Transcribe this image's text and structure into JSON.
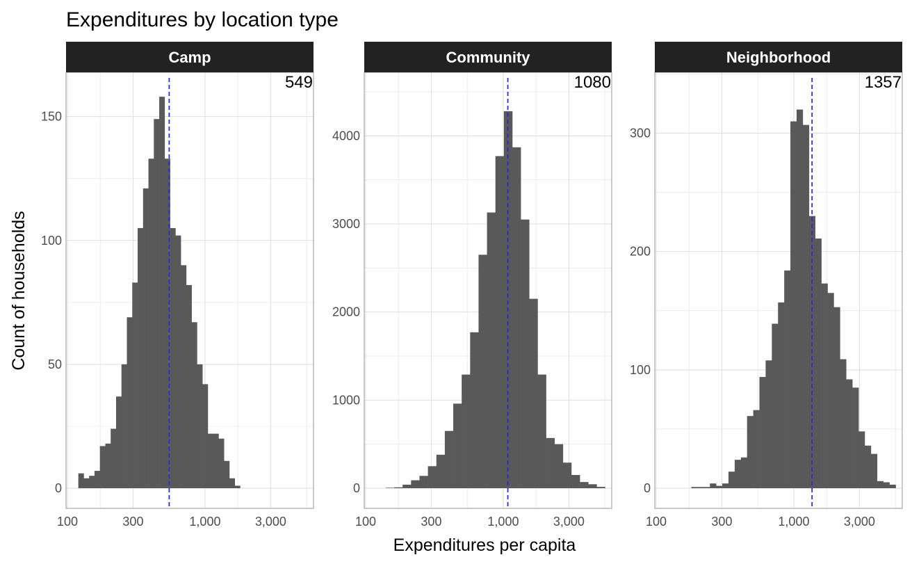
{
  "title": "Expenditures by location type",
  "xlabel": "Expenditures per capita",
  "ylabel": "Count of households",
  "colors": {
    "bar": "#595959",
    "median_line": "#2b2bd6",
    "strip": "#222222"
  },
  "chart_data": {
    "type": "histogram",
    "x_scale": "log10",
    "x_range": [
      100,
      6000
    ],
    "x_ticks": [
      100,
      300,
      1000,
      3000
    ],
    "x_tick_labels": [
      "100",
      "300",
      "1,000",
      "3,000"
    ],
    "grid": true,
    "panels": [
      {
        "name": "Camp",
        "median": 549,
        "median_label": "549",
        "ylim": [
          0,
          160
        ],
        "y_ticks": [
          0,
          50,
          100,
          150
        ],
        "y_tick_labels": [
          "0",
          "50",
          "100",
          "150"
        ],
        "bin_start": 120,
        "bin_end": 1800,
        "counts": [
          6,
          4,
          5,
          7,
          17,
          18,
          24,
          37,
          50,
          69,
          83,
          105,
          121,
          133,
          149,
          158,
          133,
          105,
          102,
          90,
          82,
          67,
          50,
          42,
          22,
          22,
          20,
          11,
          4,
          1
        ]
      },
      {
        "name": "Community",
        "median": 1080,
        "median_label": "1080",
        "ylim": [
          0,
          4500
        ],
        "y_ticks": [
          0,
          1000,
          2000,
          3000,
          4000
        ],
        "y_tick_labels": [
          "0",
          "1000",
          "2000",
          "3000",
          "4000"
        ],
        "bin_start": 140,
        "bin_end": 5500,
        "counts": [
          5,
          10,
          40,
          90,
          140,
          250,
          380,
          650,
          960,
          1290,
          1770,
          2650,
          3130,
          3770,
          4280,
          3870,
          3050,
          2150,
          1290,
          570,
          500,
          290,
          150,
          70,
          45,
          15
        ]
      },
      {
        "name": "Neighborhood",
        "median": 1357,
        "median_label": "1357",
        "ylim": [
          0,
          335
        ],
        "y_ticks": [
          0,
          100,
          200,
          300
        ],
        "y_tick_labels": [
          "0",
          "100",
          "200",
          "300"
        ],
        "bin_start": 180,
        "bin_end": 5500,
        "counts": [
          1,
          1,
          1,
          4,
          2,
          4,
          14,
          24,
          26,
          61,
          66,
          94,
          108,
          139,
          157,
          184,
          310,
          320,
          307,
          230,
          211,
          173,
          165,
          153,
          109,
          92,
          85,
          48,
          36,
          29,
          6,
          5,
          3
        ]
      }
    ]
  }
}
